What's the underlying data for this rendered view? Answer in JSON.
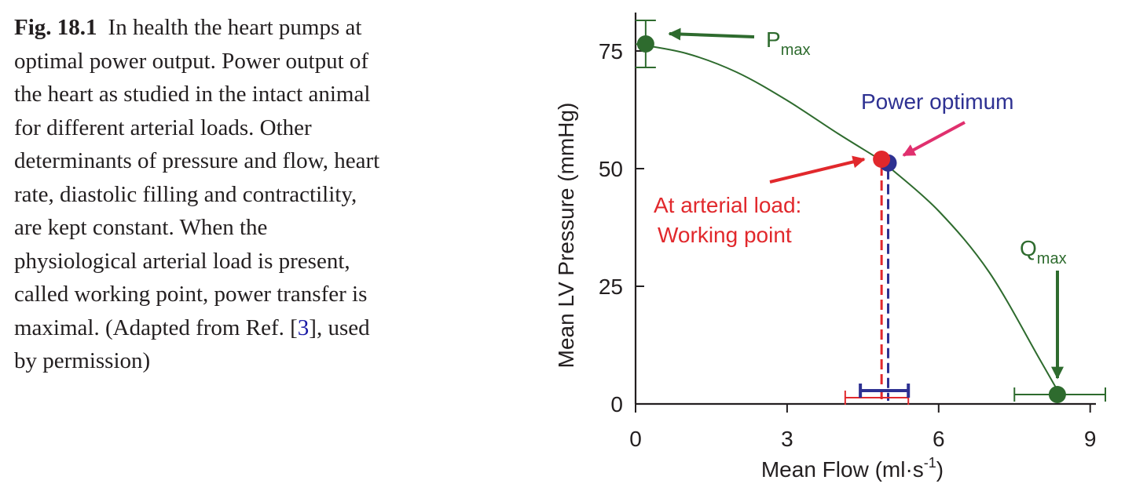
{
  "caption": {
    "label": "Fig. 18.1",
    "text_before": "In health the heart pumps at optimal power output. Power output of the heart as studied in the intact animal for different arterial loads. Other determinants of pressure and flow, heart rate, diastolic filling and contractility, are kept constant. When the physiological arterial load is present, called working point, power transfer is maximal. (Adapted from Ref. [",
    "ref": "3",
    "text_after": "], used by permission)"
  },
  "chart_data": {
    "type": "line",
    "xlabel": "Mean Flow (ml·s",
    "xlabel_sup": "-1",
    "xlabel_end": ")",
    "ylabel": "Mean LV Pressure (mmHg)",
    "xlim": [
      0,
      9.3
    ],
    "ylim": [
      0,
      80
    ],
    "xticks": [
      0,
      3,
      6,
      9
    ],
    "yticks": [
      0,
      25,
      50,
      75
    ],
    "curve": {
      "color": "#2e6b2e",
      "x": [
        0.0,
        1.0,
        2.0,
        3.0,
        4.0,
        4.9,
        5.0,
        6.0,
        7.0,
        8.0,
        8.4
      ],
      "y": [
        76.5,
        74.5,
        70.5,
        64.5,
        57.5,
        51.5,
        50.5,
        41.0,
        28.0,
        9.5,
        2.0
      ]
    },
    "points": [
      {
        "name": "pmax",
        "x": 0.2,
        "y": 76.5,
        "color": "#2e6b2e",
        "err_y": [
          71.5,
          81.5
        ]
      },
      {
        "name": "qmax",
        "x": 8.35,
        "y": 2.0,
        "color": "#2e6b2e",
        "err_x": [
          7.5,
          9.3
        ]
      },
      {
        "name": "working-point",
        "x": 4.87,
        "y": 52.0,
        "color": "#e1282c",
        "err_x": [
          4.15,
          5.4
        ]
      },
      {
        "name": "power-optimum",
        "x": 5.0,
        "y": 51.2,
        "color": "#2e3192",
        "err_x": [
          4.45,
          5.4
        ]
      }
    ],
    "annotations": {
      "pmax": {
        "main": "P",
        "sub": "max",
        "color": "#2e6b2e"
      },
      "qmax": {
        "main": "Q",
        "sub": "max",
        "color": "#2e6b2e"
      },
      "power_optimum": {
        "text": "Power optimum",
        "color": "#2e3192",
        "arrow_color": "#e0306e"
      },
      "working_point": {
        "line1": "At arterial load:",
        "line2": "Working point",
        "color": "#e1282c"
      }
    }
  }
}
